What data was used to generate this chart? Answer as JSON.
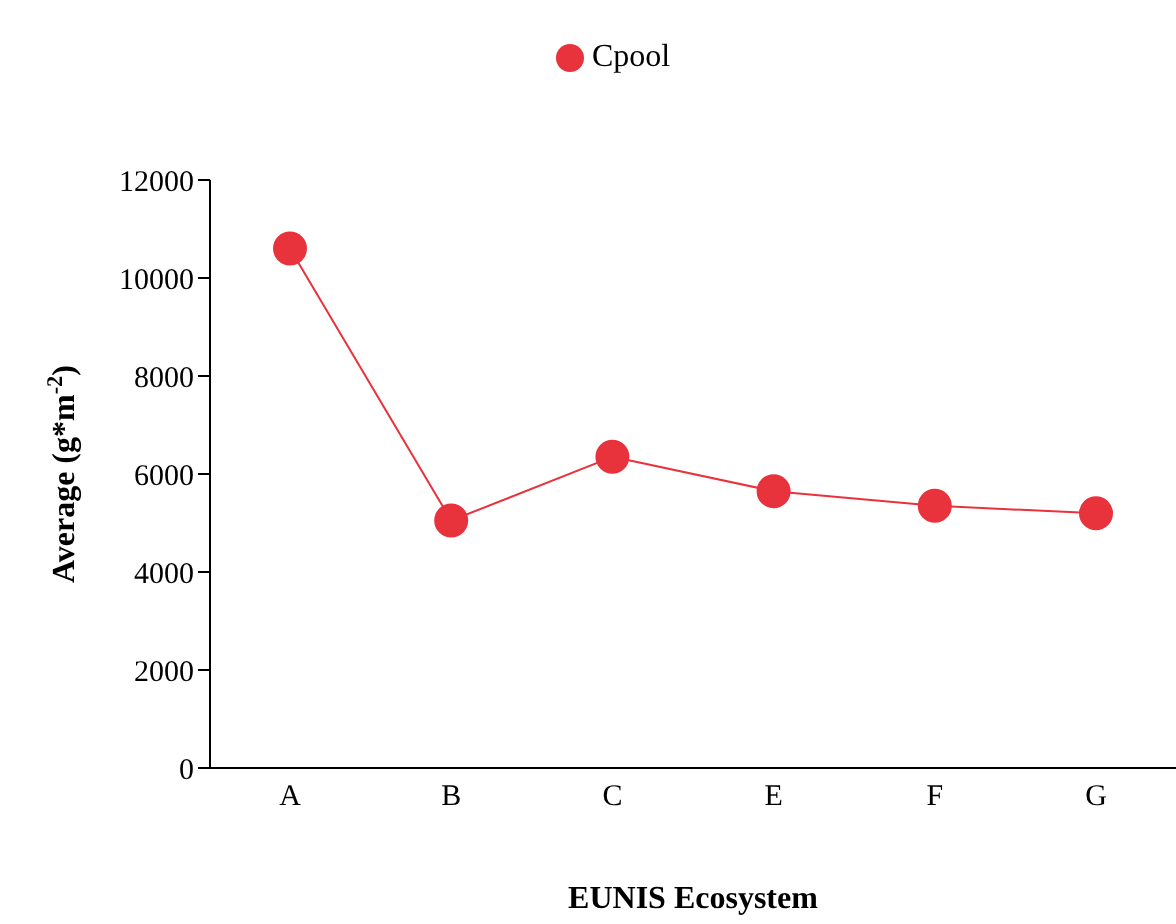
{
  "chart_data": {
    "type": "line",
    "xlabel": "EUNIS Ecosystem",
    "ylabel": "Average (g*m$^{-2}$)",
    "categories": [
      "A",
      "B",
      "C",
      "E",
      "F",
      "G"
    ],
    "series": [
      {
        "name": "Cpool",
        "color": "#e8323c",
        "values": [
          10600,
          5050,
          6350,
          5650,
          5350,
          5200
        ]
      }
    ],
    "ylim": [
      0,
      12000
    ],
    "yticks": [
      0,
      2000,
      4000,
      6000,
      8000,
      10000,
      12000
    ],
    "legend": "top",
    "marker": "circle",
    "grid": false
  }
}
